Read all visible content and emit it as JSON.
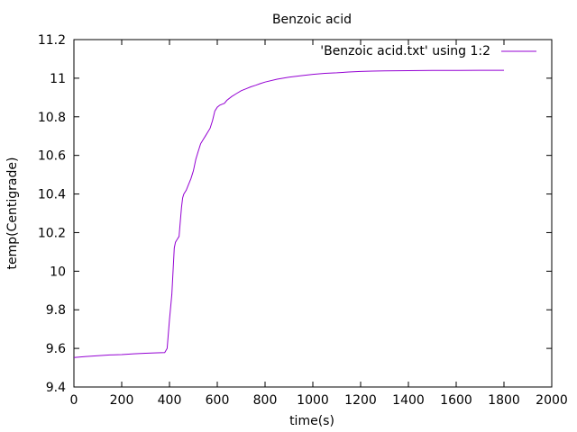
{
  "chart_data": {
    "type": "line",
    "title": "Benzoic acid",
    "xlabel": "time(s)",
    "ylabel": "temp(Centigrade)",
    "xlim": [
      0,
      2000
    ],
    "ylim": [
      9.4,
      11.2
    ],
    "xticks": [
      0,
      200,
      400,
      600,
      800,
      1000,
      1200,
      1400,
      1600,
      1800,
      2000
    ],
    "xtick_labels": [
      "0",
      "200",
      "400",
      "600",
      "800",
      "1000",
      "1200",
      "1400",
      "1600",
      "1800",
      "2000"
    ],
    "yticks": [
      9.4,
      9.6,
      9.8,
      10,
      10.2,
      10.4,
      10.6,
      10.8,
      11,
      11.2
    ],
    "ytick_labels": [
      "9.4",
      "9.6",
      "9.8",
      "10",
      "10.2",
      "10.4",
      "10.6",
      "10.8",
      "11",
      "11.2"
    ],
    "grid": false,
    "legend_position": "top-right",
    "series": [
      {
        "name": "'Benzoic acid.txt' using 1:2",
        "color": "#9400d3",
        "x": [
          0,
          50,
          100,
          150,
          200,
          250,
          300,
          350,
          380,
          390,
          400,
          410,
          420,
          425,
          430,
          440,
          450,
          455,
          460,
          470,
          480,
          490,
          500,
          510,
          520,
          530,
          540,
          550,
          560,
          570,
          580,
          590,
          600,
          610,
          620,
          630,
          640,
          660,
          680,
          700,
          720,
          740,
          760,
          780,
          800,
          850,
          900,
          950,
          1000,
          1050,
          1100,
          1150,
          1200,
          1250,
          1300,
          1400,
          1500,
          1600,
          1700,
          1800
        ],
        "y": [
          9.553,
          9.558,
          9.562,
          9.566,
          9.568,
          9.572,
          9.575,
          9.577,
          9.578,
          9.6,
          9.75,
          9.88,
          10.12,
          10.15,
          10.16,
          10.18,
          10.33,
          10.38,
          10.4,
          10.42,
          10.45,
          10.48,
          10.52,
          10.58,
          10.62,
          10.66,
          10.68,
          10.7,
          10.72,
          10.74,
          10.78,
          10.83,
          10.85,
          10.86,
          10.865,
          10.87,
          10.885,
          10.905,
          10.92,
          10.935,
          10.945,
          10.955,
          10.963,
          10.972,
          10.98,
          10.995,
          11.005,
          11.013,
          11.02,
          11.025,
          11.028,
          11.032,
          11.035,
          11.037,
          11.038,
          11.039,
          11.04,
          11.04,
          11.041,
          11.041
        ]
      }
    ]
  }
}
